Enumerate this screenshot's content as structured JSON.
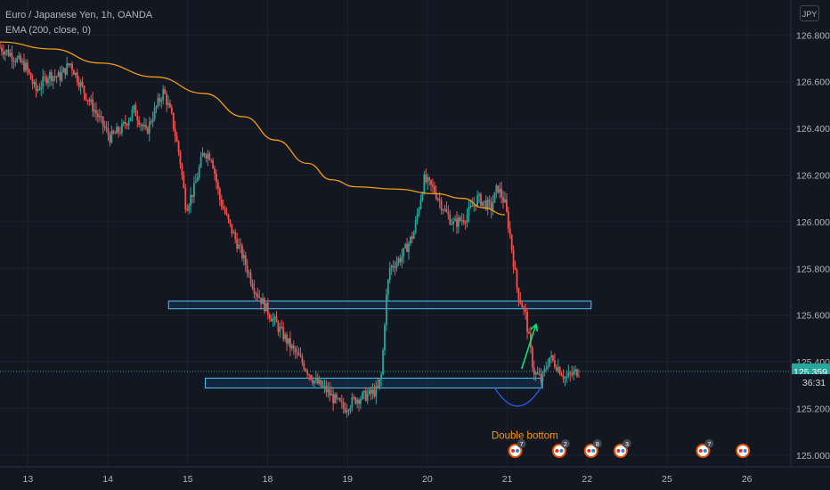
{
  "header": {
    "symbol_line": "Euro / Japanese Yen, 1h, OANDA",
    "indicator_line": "EMA (200, close, 0)",
    "currency": "JPY"
  },
  "price_scale": {
    "last_price_label": "125.359",
    "countdown_label": "36:31",
    "last_price_color": "#26a69a"
  },
  "colors": {
    "up": "#26a69a",
    "down": "#ef5350",
    "ema": "#f39c12",
    "zone_border": "#4fc3f7",
    "zone_fill": "rgba(33,150,243,0.12)",
    "arrow": "#00e676",
    "annotation_text": "#ff9800",
    "arc": "#2962ff"
  },
  "annotations": {
    "double_bottom": "Double bottom"
  },
  "chart_data": {
    "type": "candlestick",
    "title": "Euro / Japanese Yen, 1h, OANDA",
    "y_ticks": [
      125.0,
      125.2,
      125.4,
      125.6,
      125.8,
      126.0,
      126.2,
      126.4,
      126.6,
      126.8
    ],
    "y_tick_labels": [
      "125.000",
      "125.200",
      "125.400",
      "125.600",
      "125.800",
      "126.000",
      "126.200",
      "126.400",
      "126.600",
      "126.800"
    ],
    "ylim": [
      124.95,
      126.95
    ],
    "x_tick_labels": [
      "13",
      "14",
      "15",
      "18",
      "19",
      "20",
      "21",
      "22",
      "25",
      "26"
    ],
    "x_tick_index": [
      0,
      1,
      2,
      3,
      4,
      5,
      6,
      7,
      8,
      9
    ],
    "xlim": [
      -0.35,
      9.55
    ],
    "last_price": 125.359,
    "series": [
      {
        "name": "EMA (200, close, 0)",
        "type": "line",
        "points": [
          [
            -0.35,
            126.77
          ],
          [
            0.3,
            126.74
          ],
          [
            0.9,
            126.68
          ],
          [
            1.6,
            126.62
          ],
          [
            2.2,
            126.55
          ],
          [
            2.7,
            126.45
          ],
          [
            3.1,
            126.35
          ],
          [
            3.5,
            126.25
          ],
          [
            3.8,
            126.18
          ],
          [
            4.1,
            126.15
          ],
          [
            4.6,
            126.14
          ],
          [
            5.1,
            126.12
          ],
          [
            5.45,
            126.1
          ],
          [
            5.7,
            126.06
          ],
          [
            5.97,
            126.03
          ]
        ]
      }
    ],
    "horizontal_zones": [
      {
        "start": 1.76,
        "end": 7.05,
        "low": 125.627,
        "high": 125.66
      },
      {
        "start": 2.22,
        "end": 6.43,
        "low": 125.288,
        "high": 125.33
      }
    ],
    "candle_anchors": [
      [
        -0.35,
        126.75
      ],
      [
        -0.2,
        126.72
      ],
      [
        0.0,
        126.66
      ],
      [
        0.12,
        126.56
      ],
      [
        0.28,
        126.63
      ],
      [
        0.42,
        126.62
      ],
      [
        0.55,
        126.68
      ],
      [
        0.72,
        126.56
      ],
      [
        0.9,
        126.45
      ],
      [
        1.05,
        126.36
      ],
      [
        1.2,
        126.4
      ],
      [
        1.35,
        126.48
      ],
      [
        1.5,
        126.38
      ],
      [
        1.6,
        126.47
      ],
      [
        1.72,
        126.56
      ],
      [
        1.82,
        126.45
      ],
      [
        1.92,
        126.28
      ],
      [
        2.0,
        126.06
      ],
      [
        2.1,
        126.14
      ],
      [
        2.22,
        126.3
      ],
      [
        2.32,
        126.28
      ],
      [
        2.42,
        126.1
      ],
      [
        2.55,
        125.98
      ],
      [
        2.7,
        125.86
      ],
      [
        2.85,
        125.72
      ],
      [
        3.0,
        125.63
      ],
      [
        3.15,
        125.55
      ],
      [
        3.3,
        125.47
      ],
      [
        3.45,
        125.4
      ],
      [
        3.6,
        125.32
      ],
      [
        3.75,
        125.28
      ],
      [
        3.85,
        125.24
      ],
      [
        3.98,
        125.2
      ],
      [
        4.12,
        125.24
      ],
      [
        4.3,
        125.26
      ],
      [
        4.4,
        125.28
      ],
      [
        4.45,
        125.35
      ],
      [
        4.5,
        125.65
      ],
      [
        4.55,
        125.8
      ],
      [
        4.7,
        125.85
      ],
      [
        4.85,
        125.95
      ],
      [
        4.98,
        126.18
      ],
      [
        5.1,
        126.14
      ],
      [
        5.25,
        126.04
      ],
      [
        5.35,
        125.99
      ],
      [
        5.5,
        126.02
      ],
      [
        5.65,
        126.1
      ],
      [
        5.82,
        126.06
      ],
      [
        5.9,
        126.15
      ],
      [
        5.99,
        126.08
      ],
      [
        6.05,
        125.96
      ],
      [
        6.15,
        125.7
      ],
      [
        6.25,
        125.6
      ],
      [
        6.35,
        125.36
      ],
      [
        6.45,
        125.32
      ],
      [
        6.55,
        125.42
      ],
      [
        6.65,
        125.38
      ],
      [
        6.75,
        125.33
      ],
      [
        6.9,
        125.36
      ]
    ],
    "event_markers": [
      {
        "x": 6.1,
        "count": "7"
      },
      {
        "x": 6.65,
        "count": "2"
      },
      {
        "x": 7.05,
        "count": "8"
      },
      {
        "x": 7.42,
        "count": "3"
      },
      {
        "x": 8.45,
        "count": "7"
      },
      {
        "x": 8.95,
        "count": ""
      }
    ]
  }
}
